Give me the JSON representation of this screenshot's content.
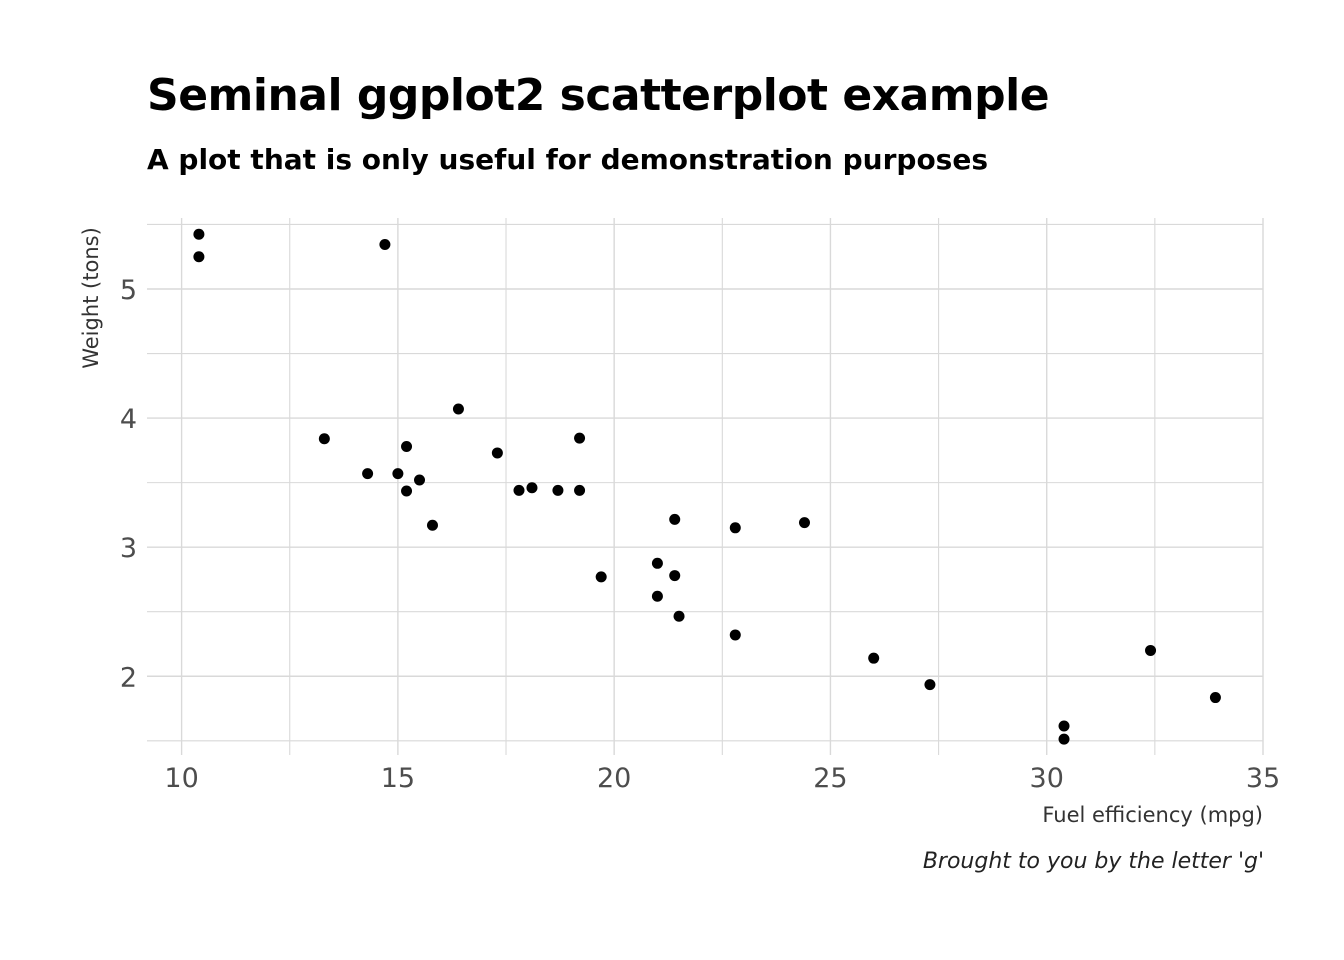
{
  "chart_data": {
    "type": "scatter",
    "title": "Seminal ggplot2 scatterplot example",
    "subtitle": "A plot that is only useful for demonstration purposes",
    "caption": "Brought to you by the letter 'g'",
    "xlabel": "Fuel efficiency (mpg)",
    "ylabel": "Weight (tons)",
    "xlim": [
      9.2,
      35.0
    ],
    "ylim": [
      1.39,
      5.55
    ],
    "xticks": [
      10,
      15,
      20,
      25,
      30,
      35
    ],
    "yticks": [
      2,
      3,
      4,
      5
    ],
    "grid": true,
    "point_color": "#000000",
    "grid_color": "#d9d9d9",
    "points": [
      {
        "x": 21.0,
        "y": 2.62
      },
      {
        "x": 21.0,
        "y": 2.875
      },
      {
        "x": 22.8,
        "y": 2.32
      },
      {
        "x": 21.4,
        "y": 3.215
      },
      {
        "x": 18.7,
        "y": 3.44
      },
      {
        "x": 18.1,
        "y": 3.46
      },
      {
        "x": 14.3,
        "y": 3.57
      },
      {
        "x": 24.4,
        "y": 3.19
      },
      {
        "x": 22.8,
        "y": 3.15
      },
      {
        "x": 19.2,
        "y": 3.44
      },
      {
        "x": 17.8,
        "y": 3.44
      },
      {
        "x": 16.4,
        "y": 4.07
      },
      {
        "x": 17.3,
        "y": 3.73
      },
      {
        "x": 15.2,
        "y": 3.78
      },
      {
        "x": 10.4,
        "y": 5.25
      },
      {
        "x": 10.4,
        "y": 5.424
      },
      {
        "x": 14.7,
        "y": 5.345
      },
      {
        "x": 32.4,
        "y": 2.2
      },
      {
        "x": 30.4,
        "y": 1.615
      },
      {
        "x": 33.9,
        "y": 1.835
      },
      {
        "x": 21.5,
        "y": 2.465
      },
      {
        "x": 15.5,
        "y": 3.52
      },
      {
        "x": 15.2,
        "y": 3.435
      },
      {
        "x": 13.3,
        "y": 3.84
      },
      {
        "x": 19.2,
        "y": 3.845
      },
      {
        "x": 27.3,
        "y": 1.935
      },
      {
        "x": 26.0,
        "y": 2.14
      },
      {
        "x": 30.4,
        "y": 1.513
      },
      {
        "x": 15.8,
        "y": 3.17
      },
      {
        "x": 19.7,
        "y": 2.77
      },
      {
        "x": 15.0,
        "y": 3.57
      },
      {
        "x": 21.4,
        "y": 2.78
      }
    ]
  }
}
